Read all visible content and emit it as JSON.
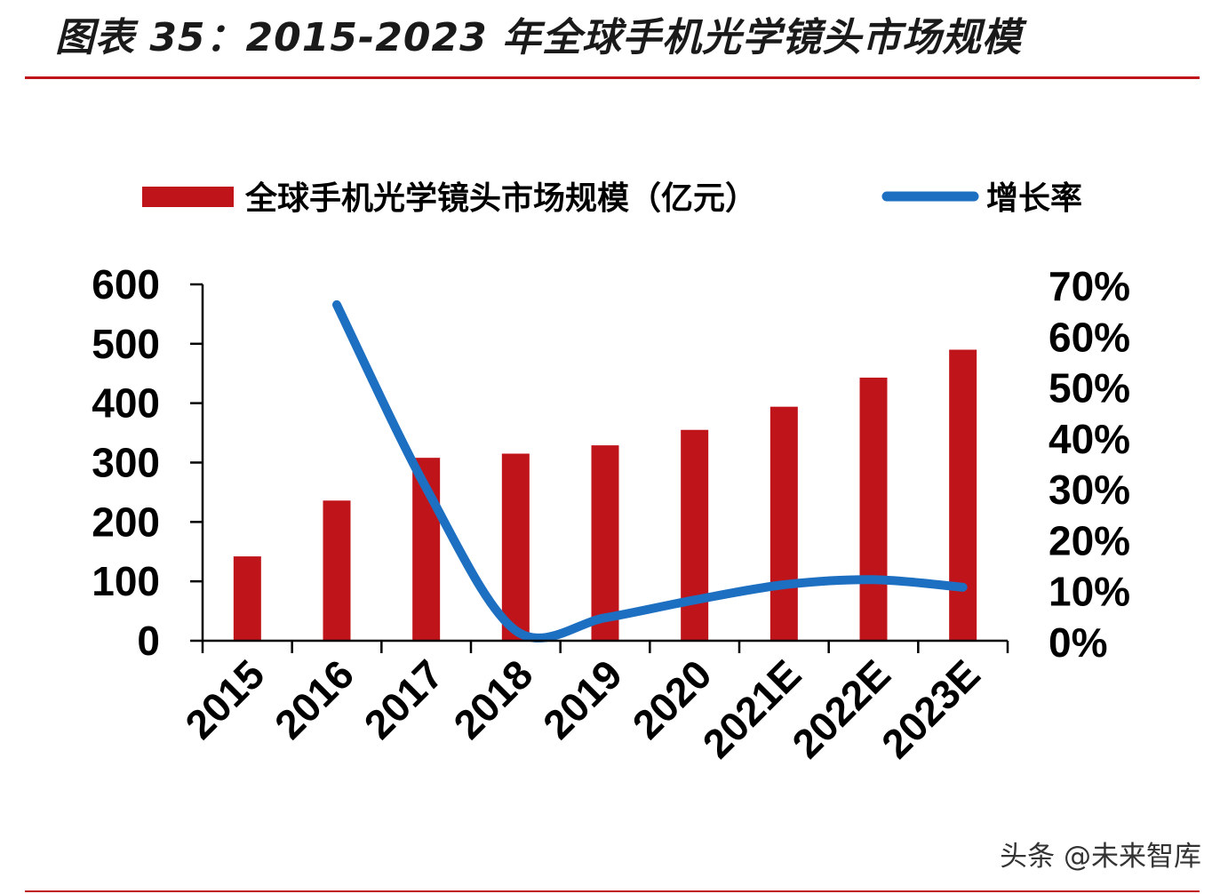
{
  "title": "图表 35：2015-2023 年全球手机光学镜头市场规模",
  "watermark": "头条 @未来智库",
  "colors": {
    "bar": "#c0141b",
    "line": "#1d6fc1",
    "axis": "#000000",
    "rule": "#c0141b"
  },
  "chart_data": {
    "type": "bar+line",
    "title": "图表 35：2015-2023 年全球手机光学镜头市场规模",
    "categories": [
      "2015",
      "2016",
      "2017",
      "2018",
      "2019",
      "2020",
      "2021E",
      "2022E",
      "2023E"
    ],
    "series": [
      {
        "name": "全球手机光学镜头市场规模（亿元）",
        "type": "bar",
        "axis": "left",
        "values": [
          142,
          236,
          308,
          315,
          329,
          355,
          394,
          443,
          490
        ]
      },
      {
        "name": "增长率",
        "type": "line",
        "axis": "right",
        "values": [
          null,
          0.66,
          0.3,
          0.02,
          0.045,
          0.08,
          0.11,
          0.12,
          0.105
        ]
      }
    ],
    "y_left": {
      "min": 0,
      "max": 600,
      "ticks": [
        "0",
        "100",
        "200",
        "300",
        "400",
        "500",
        "600"
      ]
    },
    "y_right": {
      "min": 0,
      "max": 0.7,
      "ticks": [
        "0%",
        "10%",
        "20%",
        "30%",
        "40%",
        "50%",
        "60%",
        "70%"
      ]
    },
    "legend_position": "top",
    "grid": false,
    "xlabel": "",
    "ylabel": ""
  }
}
